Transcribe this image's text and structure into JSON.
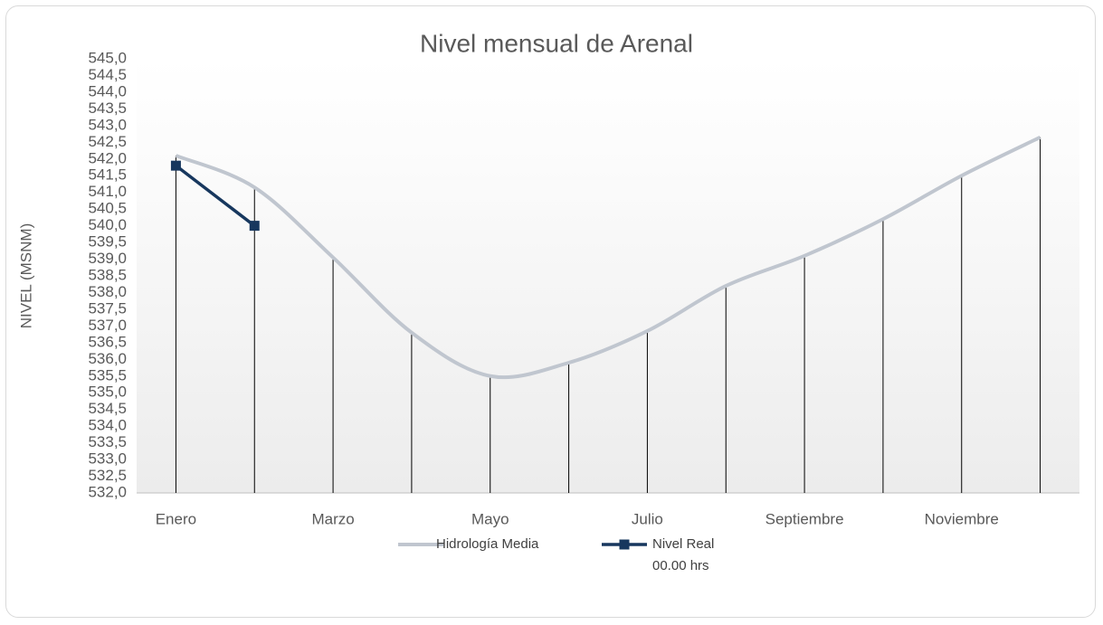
{
  "chart_data": {
    "type": "line",
    "title": "Nivel mensual de Arenal",
    "y_label": "NIVEL (MSNM)",
    "categories": [
      "Enero",
      null,
      "Marzo",
      null,
      "Mayo",
      null,
      "Julio",
      null,
      "Septiembre",
      null,
      "Noviembre",
      null
    ],
    "series": [
      {
        "name": "Hidrología Media",
        "color": "#c0c6cf",
        "smooth": true,
        "drop_lines": true,
        "values": [
          542.1,
          541.15,
          539.05,
          536.8,
          535.5,
          535.9,
          536.85,
          538.2,
          539.1,
          540.2,
          541.5,
          542.65
        ]
      },
      {
        "name": "Nivel Real\n00.00 hrs",
        "color": "#17375e",
        "marker": "square",
        "values": [
          541.8,
          540.0,
          null,
          null,
          null,
          null,
          null,
          null,
          null,
          null,
          null,
          null
        ]
      }
    ],
    "ylim": [
      532,
      545
    ],
    "yticks": [
      {
        "value": 532,
        "label": "532,0"
      },
      {
        "value": 532.5,
        "label": "532,5"
      },
      {
        "value": 533,
        "label": "533,0"
      },
      {
        "value": 533.5,
        "label": "533,5"
      },
      {
        "value": 534,
        "label": "534,0"
      },
      {
        "value": 534.5,
        "label": "534,5"
      },
      {
        "value": 535,
        "label": "535,0"
      },
      {
        "value": 535.5,
        "label": "535,5"
      },
      {
        "value": 536,
        "label": "536,0"
      },
      {
        "value": 536.5,
        "label": "536,5"
      },
      {
        "value": 537,
        "label": "537,0"
      },
      {
        "value": 537.5,
        "label": "537,5"
      },
      {
        "value": 538,
        "label": "538,0"
      },
      {
        "value": 538.5,
        "label": "538,5"
      },
      {
        "value": 539,
        "label": "539,0"
      },
      {
        "value": 539.5,
        "label": "539,5"
      },
      {
        "value": 540,
        "label": "540,0"
      },
      {
        "value": 540.5,
        "label": "540,5"
      },
      {
        "value": 541,
        "label": "541,0"
      },
      {
        "value": 541.5,
        "label": "541,5"
      },
      {
        "value": 542,
        "label": "542,0"
      },
      {
        "value": 542.5,
        "label": "542,5"
      },
      {
        "value": 543,
        "label": "543,0"
      },
      {
        "value": 543.5,
        "label": "543,5"
      },
      {
        "value": 544,
        "label": "544,0"
      },
      {
        "value": 544.5,
        "label": "544,5"
      },
      {
        "value": 545,
        "label": "545,0"
      }
    ],
    "grid": false,
    "legend": "bottom"
  }
}
